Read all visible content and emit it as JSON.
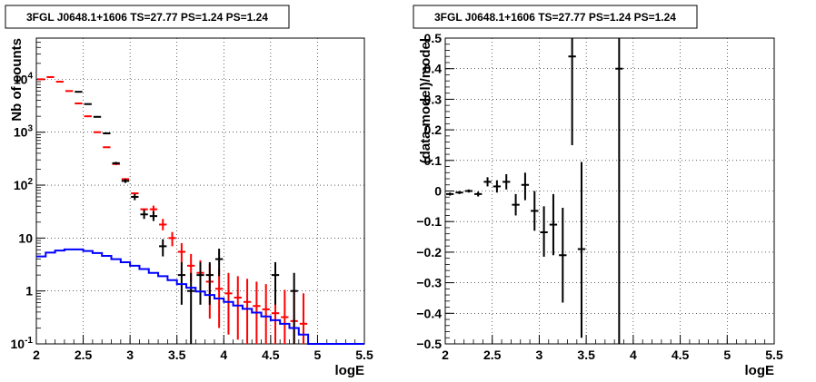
{
  "chart_data": [
    {
      "type": "line",
      "title": "3FGL J0648.1+1606 TS=27.77 PS=1.24 PS=1.24",
      "xlabel": "logE",
      "ylabel": "Nb of counts",
      "xlim": [
        2,
        5.5
      ],
      "ylim": [
        0.1,
        60000
      ],
      "yscale": "log",
      "grid": true,
      "x_ticks": [
        2,
        2.5,
        3,
        3.5,
        4,
        4.5,
        5,
        5.5
      ],
      "x_tick_labels": [
        "2",
        "2.5",
        "3",
        "3.5",
        "4",
        "4.5",
        "5",
        "5.5"
      ],
      "y_ticks": [
        0.1,
        1,
        10,
        100,
        1000,
        10000
      ],
      "y_tick_labels": [
        "10-1",
        "1",
        "10",
        "10^2",
        "10^3",
        "10^4"
      ],
      "series": [
        {
          "name": "",
          "style": "model-step",
          "color": "#ff0000",
          "bins": [
            {
              "x": 2.05,
              "y": 10000
            },
            {
              "x": 2.15,
              "y": 11000
            },
            {
              "x": 2.25,
              "y": 9000
            },
            {
              "x": 2.35,
              "y": 6000
            },
            {
              "x": 2.45,
              "y": 3500
            },
            {
              "x": 2.55,
              "y": 2000
            },
            {
              "x": 2.65,
              "y": 1000
            },
            {
              "x": 2.75,
              "y": 520
            },
            {
              "x": 2.85,
              "y": 250
            },
            {
              "x": 2.95,
              "y": 130
            },
            {
              "x": 3.05,
              "y": 70
            },
            {
              "x": 3.15,
              "y": 35
            }
          ]
        },
        {
          "name": "",
          "style": "model-points",
          "color": "#ff0000",
          "points": [
            {
              "x": 3.25,
              "y": 35,
              "lo": 30,
              "hi": 41
            },
            {
              "x": 3.35,
              "y": 18,
              "lo": 14,
              "hi": 23
            },
            {
              "x": 3.45,
              "y": 10,
              "lo": 7,
              "hi": 13
            },
            {
              "x": 3.55,
              "y": 5.5,
              "lo": 3.5,
              "hi": 8
            },
            {
              "x": 3.65,
              "y": 3,
              "lo": 1.5,
              "hi": 5
            },
            {
              "x": 3.75,
              "y": 2.2,
              "lo": 0.9,
              "hi": 3.8
            },
            {
              "x": 3.85,
              "y": 1.5,
              "lo": 0.3,
              "hi": 3.2
            },
            {
              "x": 3.95,
              "y": 1.1,
              "lo": 0.2,
              "hi": 2.6
            },
            {
              "x": 4.05,
              "y": 0.9,
              "lo": 0.15,
              "hi": 2.2
            },
            {
              "x": 4.15,
              "y": 0.75,
              "lo": 0.12,
              "hi": 1.9
            },
            {
              "x": 4.25,
              "y": 0.62,
              "lo": 0.1,
              "hi": 1.7
            },
            {
              "x": 4.35,
              "y": 0.52,
              "lo": 0.1,
              "hi": 1.5
            },
            {
              "x": 4.45,
              "y": 0.45,
              "lo": 0.1,
              "hi": 1.35
            },
            {
              "x": 4.55,
              "y": 0.38,
              "lo": 0.1,
              "hi": 1.2
            },
            {
              "x": 4.65,
              "y": 0.32,
              "lo": 0.1,
              "hi": 1.05
            },
            {
              "x": 4.75,
              "y": 0.27,
              "lo": 0.1,
              "hi": 0.95
            },
            {
              "x": 4.85,
              "y": 0.24,
              "lo": 0.1,
              "hi": 0.9
            }
          ]
        },
        {
          "name": "",
          "style": "data-points",
          "color": "#000000",
          "points": [
            {
              "x": 2.45,
              "y": 5800,
              "lo": 5700,
              "hi": 5900
            },
            {
              "x": 2.55,
              "y": 3400,
              "lo": 3300,
              "hi": 3500
            },
            {
              "x": 2.65,
              "y": 1950,
              "lo": 1900,
              "hi": 2020
            },
            {
              "x": 2.75,
              "y": 950,
              "lo": 920,
              "hi": 990
            },
            {
              "x": 2.85,
              "y": 260,
              "lo": 245,
              "hi": 275
            },
            {
              "x": 2.95,
              "y": 120,
              "lo": 110,
              "hi": 132
            },
            {
              "x": 3.05,
              "y": 60,
              "lo": 52,
              "hi": 68
            },
            {
              "x": 3.15,
              "y": 28,
              "lo": 23,
              "hi": 34
            },
            {
              "x": 3.25,
              "y": 26,
              "lo": 21,
              "hi": 32
            },
            {
              "x": 3.35,
              "y": 7,
              "lo": 4.5,
              "hi": 9.5
            },
            {
              "x": 3.55,
              "y": 2,
              "lo": 0.55,
              "hi": 3.5
            },
            {
              "x": 3.65,
              "y": 1,
              "lo": 0.1,
              "hi": 2.2
            },
            {
              "x": 3.75,
              "y": 2,
              "lo": 0.55,
              "hi": 3.5
            },
            {
              "x": 3.85,
              "y": 2,
              "lo": 0.55,
              "hi": 3.5
            },
            {
              "x": 3.95,
              "y": 4,
              "lo": 1.9,
              "hi": 6.3
            },
            {
              "x": 4.55,
              "y": 2,
              "lo": 0.55,
              "hi": 3.5
            },
            {
              "x": 4.75,
              "y": 1,
              "lo": 0.1,
              "hi": 2.2
            }
          ]
        },
        {
          "name": "",
          "style": "step",
          "color": "#0000ff",
          "bins": [
            {
              "x": 2.05,
              "y": 4.5
            },
            {
              "x": 2.15,
              "y": 5.3
            },
            {
              "x": 2.25,
              "y": 5.8
            },
            {
              "x": 2.35,
              "y": 6.1
            },
            {
              "x": 2.45,
              "y": 6.1
            },
            {
              "x": 2.55,
              "y": 5.7
            },
            {
              "x": 2.65,
              "y": 5.2
            },
            {
              "x": 2.75,
              "y": 4.6
            },
            {
              "x": 2.85,
              "y": 4.0
            },
            {
              "x": 2.95,
              "y": 3.5
            },
            {
              "x": 3.05,
              "y": 3.0
            },
            {
              "x": 3.15,
              "y": 2.6
            },
            {
              "x": 3.25,
              "y": 2.2
            },
            {
              "x": 3.35,
              "y": 1.9
            },
            {
              "x": 3.45,
              "y": 1.6
            },
            {
              "x": 3.55,
              "y": 1.35
            },
            {
              "x": 3.65,
              "y": 1.15
            },
            {
              "x": 3.75,
              "y": 0.98
            },
            {
              "x": 3.85,
              "y": 0.84
            },
            {
              "x": 3.95,
              "y": 0.72
            },
            {
              "x": 4.05,
              "y": 0.62
            },
            {
              "x": 4.15,
              "y": 0.53
            },
            {
              "x": 4.25,
              "y": 0.46
            },
            {
              "x": 4.35,
              "y": 0.39
            },
            {
              "x": 4.45,
              "y": 0.33
            },
            {
              "x": 4.55,
              "y": 0.28
            },
            {
              "x": 4.65,
              "y": 0.24
            },
            {
              "x": 4.75,
              "y": 0.2
            },
            {
              "x": 4.85,
              "y": 0.15
            },
            {
              "x": 4.95,
              "y": 0.1
            },
            {
              "x": 5.05,
              "y": 0.1
            },
            {
              "x": 5.15,
              "y": 0.1
            },
            {
              "x": 5.25,
              "y": 0.1
            },
            {
              "x": 5.35,
              "y": 0.1
            },
            {
              "x": 5.45,
              "y": 0.1
            }
          ]
        }
      ]
    },
    {
      "type": "scatter",
      "title": "3FGL J0648.1+1606 TS=27.77 PS=1.24 PS=1.24",
      "xlabel": "logE",
      "ylabel": "(data-model)/model",
      "xlim": [
        2,
        5.5
      ],
      "ylim": [
        -0.5,
        0.5
      ],
      "yscale": "linear",
      "grid": true,
      "x_ticks": [
        2,
        2.5,
        3,
        3.5,
        4,
        4.5,
        5,
        5.5
      ],
      "x_tick_labels": [
        "2",
        "2.5",
        "3",
        "3.5",
        "4",
        "4.5",
        "5",
        "5.5"
      ],
      "y_ticks": [
        -0.5,
        -0.4,
        -0.3,
        -0.2,
        -0.1,
        0,
        0.1,
        0.2,
        0.3,
        0.4,
        0.5
      ],
      "y_tick_labels": [
        "−0.5",
        "−0.4",
        "−0.3",
        "−0.2",
        "−0.1",
        "0",
        "0.1",
        "0.2",
        "0.3",
        "0.4",
        "0.5"
      ],
      "series": [
        {
          "name": "",
          "style": "data-points",
          "color": "#000000",
          "points": [
            {
              "x": 2.05,
              "y": -0.01,
              "lo": -0.015,
              "hi": -0.005
            },
            {
              "x": 2.15,
              "y": -0.005,
              "lo": -0.01,
              "hi": 0.0
            },
            {
              "x": 2.25,
              "y": 0.0,
              "lo": -0.005,
              "hi": 0.005
            },
            {
              "x": 2.35,
              "y": -0.01,
              "lo": -0.018,
              "hi": -0.002
            },
            {
              "x": 2.45,
              "y": 0.03,
              "lo": 0.015,
              "hi": 0.045
            },
            {
              "x": 2.55,
              "y": 0.015,
              "lo": -0.005,
              "hi": 0.035
            },
            {
              "x": 2.65,
              "y": 0.03,
              "lo": 0.005,
              "hi": 0.055
            },
            {
              "x": 2.75,
              "y": -0.045,
              "lo": -0.08,
              "hi": -0.01
            },
            {
              "x": 2.85,
              "y": 0.02,
              "lo": -0.03,
              "hi": 0.06
            },
            {
              "x": 2.95,
              "y": -0.065,
              "lo": -0.13,
              "hi": 0.0
            },
            {
              "x": 3.05,
              "y": -0.135,
              "lo": -0.215,
              "hi": -0.05
            },
            {
              "x": 3.15,
              "y": -0.11,
              "lo": -0.21,
              "hi": -0.01
            },
            {
              "x": 3.25,
              "y": -0.21,
              "lo": -0.365,
              "hi": -0.055
            },
            {
              "x": 3.35,
              "y": 0.44,
              "lo": 0.15,
              "hi": 0.5
            },
            {
              "x": 3.45,
              "y": -0.19,
              "lo": -0.48,
              "hi": 0.095
            },
            {
              "x": 3.85,
              "y": 0.4,
              "lo": -0.5,
              "hi": 0.5
            }
          ]
        }
      ]
    }
  ]
}
